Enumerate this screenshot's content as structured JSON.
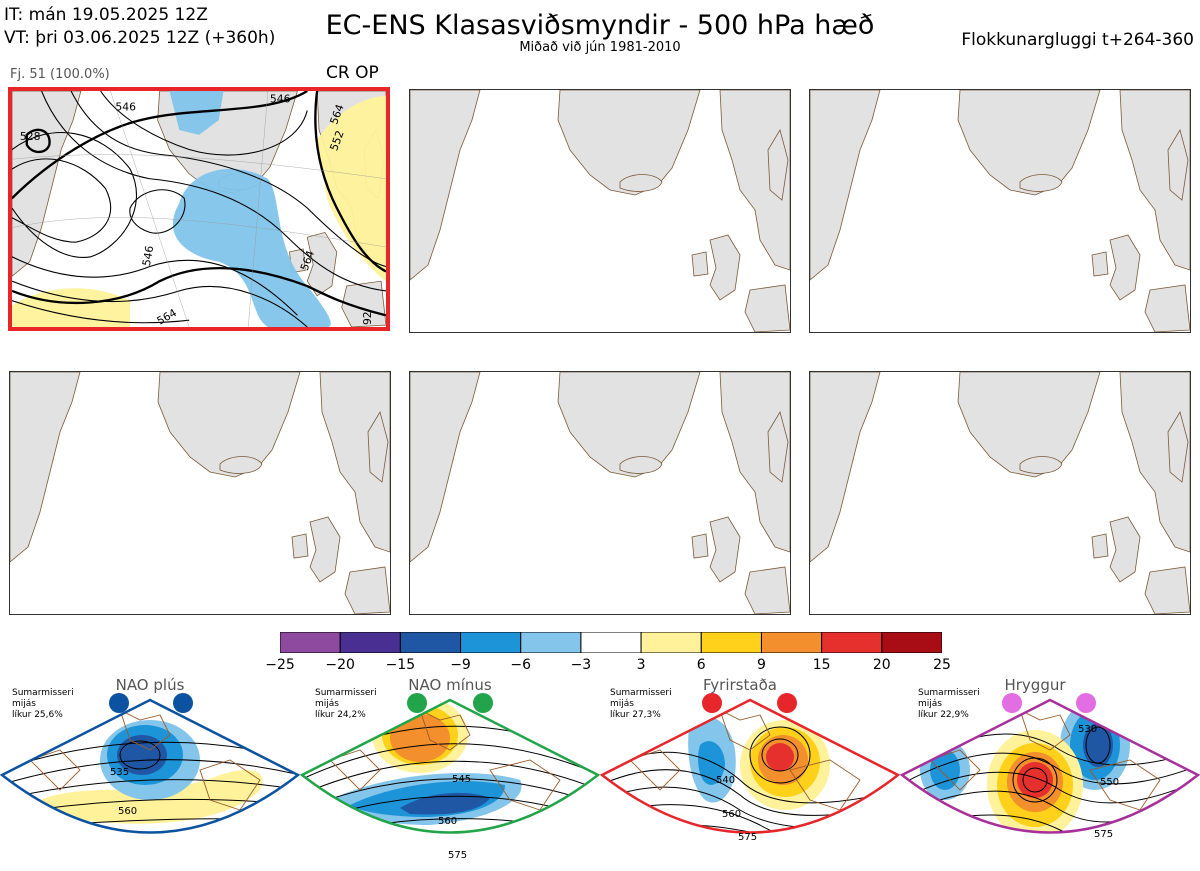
{
  "header": {
    "it_line": "IT: mán 19.05.2025 12Z",
    "vt_line": "VT: þri 03.06.2025 12Z  (+360h)",
    "title": "EC-ENS Klasasviðsmyndir - 500 hPa hæð",
    "subtitle": "Miðað við jún 1981-2010",
    "window": "Flokkunargluggi t+264-360"
  },
  "member": {
    "label": "Fj. 51 (100.0%)",
    "tag": "CR OP",
    "contour_labels": [
      "546",
      "546",
      "528",
      "564",
      "546",
      "564",
      "564",
      "552",
      "92"
    ]
  },
  "colorbar": {
    "ticks": [
      "−25",
      "−20",
      "−15",
      "−9",
      "−6",
      "−3",
      "3",
      "6",
      "9",
      "15",
      "20",
      "25"
    ],
    "colors": [
      "#8e4a9e",
      "#4a2f93",
      "#1f57a4",
      "#1e94d8",
      "#84c5eb",
      "#ffffff",
      "#fff29a",
      "#ffd11a",
      "#f38f2c",
      "#e5302d",
      "#a80d16"
    ]
  },
  "clusters": [
    {
      "title": "NAO plús",
      "season": "Sumarmisseri",
      "info1": "mijás",
      "info2": "líkur 25,6%",
      "color": "#0b53a1",
      "labels": [
        "535",
        "560"
      ]
    },
    {
      "title": "NAO mínus",
      "season": "Sumarmisseri",
      "info1": "mijás",
      "info2": "líkur 24,2%",
      "color": "#22a54a",
      "labels": [
        "545",
        "560",
        "575"
      ]
    },
    {
      "title": "Fyrirstaða",
      "season": "Sumarmisseri",
      "info1": "mijás",
      "info2": "líkur 27,3%",
      "color": "#e6262b",
      "labels": [
        "540",
        "560",
        "575"
      ]
    },
    {
      "title": "Hryggur",
      "season": "Sumarmisseri",
      "info1": "mijás",
      "info2": "líkur 22,9%",
      "color": "#a8309a",
      "labels": [
        "530",
        "550",
        "575"
      ]
    }
  ]
}
